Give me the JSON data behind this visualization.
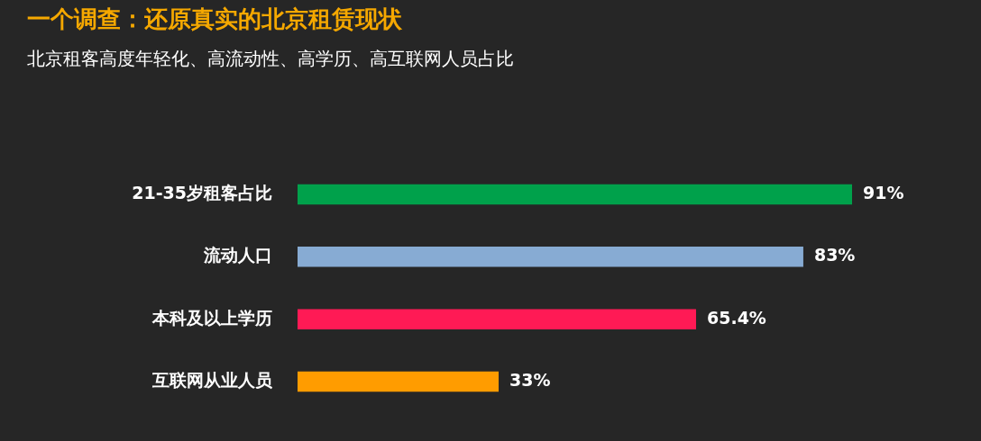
{
  "chart_data": {
    "type": "bar",
    "orientation": "horizontal",
    "title": "一个调查：还原真实的北京租赁现状",
    "subtitle": "北京租客高度年轻化、高流动性、高学历、高互联网人员占比",
    "categories": [
      "21-35岁租客占比",
      "流动人口",
      "本科及以上学历",
      "互联网从业人员"
    ],
    "values": [
      91,
      83,
      65.4,
      33
    ],
    "colors": [
      "#00a14b",
      "#87abd3",
      "#ff1a55",
      "#ff9c00"
    ],
    "value_labels": [
      "91%",
      "83%",
      "65.4%",
      "33%"
    ]
  }
}
